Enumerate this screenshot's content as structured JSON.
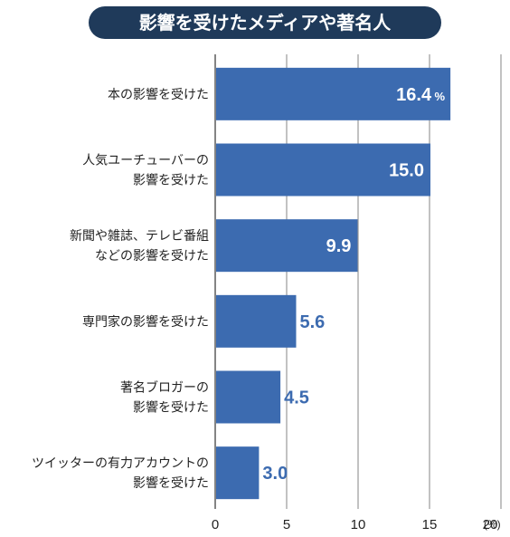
{
  "chart_data": {
    "type": "bar",
    "orientation": "horizontal",
    "title": "影響を受けたメディアや著名人",
    "categories": [
      [
        "本の影響を受けた"
      ],
      [
        "人気ユーチューバーの",
        "影響を受けた"
      ],
      [
        "新聞や雑誌、テレビ番組",
        "などの影響を受けた"
      ],
      [
        "専門家の影響を受けた"
      ],
      [
        "著名ブロガーの",
        "影響を受けた"
      ],
      [
        "ツイッターの有力アカウントの",
        "影響を受けた"
      ]
    ],
    "values": [
      16.4,
      15.0,
      9.9,
      5.6,
      4.5,
      3.0
    ],
    "value_labels": [
      "16.4",
      "15.0",
      "9.9",
      "5.6",
      "4.5",
      "3.0"
    ],
    "first_value_suffix": "%",
    "xlim": [
      0,
      20
    ],
    "xticks": [
      "0",
      "5",
      "10",
      "15",
      "20"
    ],
    "x_unit": "(%)",
    "grid": true,
    "bar_color": "#3c6bb0",
    "title_bg_color": "#1f3a5a",
    "label_outside_threshold": 6
  }
}
